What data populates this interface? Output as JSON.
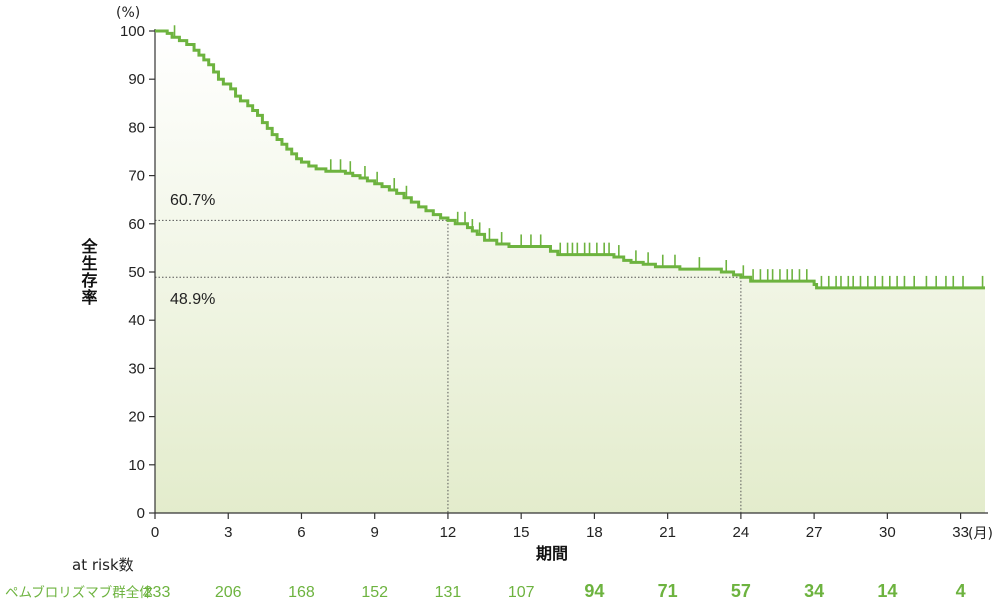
{
  "chart_data": {
    "type": "line",
    "subtype": "kaplan-meier",
    "ylabel": "全生存率",
    "yunit": "(%)",
    "xlabel": "期間",
    "xunit": "(月)",
    "xlim": [
      0,
      34
    ],
    "ylim": [
      0,
      100
    ],
    "xticks": [
      0,
      3,
      6,
      9,
      12,
      15,
      18,
      21,
      24,
      27,
      30,
      33
    ],
    "yticks": [
      0,
      10,
      20,
      30,
      40,
      50,
      60,
      70,
      80,
      90,
      100
    ],
    "grid": false,
    "colors": {
      "curve": "#6db33f",
      "fill_top": "#ffffff",
      "fill_bottom": "#e3eccc"
    },
    "series": [
      {
        "name": "ペムブロリズマブ群全体",
        "color": "#6db33f",
        "steps": [
          [
            0,
            100
          ],
          [
            0.5,
            99.5
          ],
          [
            0.7,
            98.7
          ],
          [
            1.0,
            98.0
          ],
          [
            1.3,
            97.2
          ],
          [
            1.6,
            96.0
          ],
          [
            1.8,
            95.0
          ],
          [
            2.0,
            94.0
          ],
          [
            2.2,
            93.0
          ],
          [
            2.4,
            91.5
          ],
          [
            2.6,
            90.0
          ],
          [
            2.8,
            89.0
          ],
          [
            3.1,
            88.0
          ],
          [
            3.3,
            86.5
          ],
          [
            3.5,
            85.5
          ],
          [
            3.8,
            84.5
          ],
          [
            4.0,
            83.5
          ],
          [
            4.2,
            82.5
          ],
          [
            4.4,
            81.0
          ],
          [
            4.6,
            79.8
          ],
          [
            4.8,
            78.5
          ],
          [
            5.0,
            77.5
          ],
          [
            5.2,
            76.5
          ],
          [
            5.4,
            75.5
          ],
          [
            5.6,
            74.5
          ],
          [
            5.8,
            73.5
          ],
          [
            6.0,
            72.8
          ],
          [
            6.3,
            72.0
          ],
          [
            6.6,
            71.4
          ],
          [
            7.0,
            70.9
          ],
          [
            7.8,
            70.5
          ],
          [
            8.1,
            70.0
          ],
          [
            8.4,
            69.5
          ],
          [
            8.7,
            68.9
          ],
          [
            9.0,
            68.3
          ],
          [
            9.3,
            67.7
          ],
          [
            9.6,
            67.0
          ],
          [
            9.9,
            66.3
          ],
          [
            10.2,
            65.4
          ],
          [
            10.5,
            64.5
          ],
          [
            10.8,
            63.5
          ],
          [
            11.1,
            62.7
          ],
          [
            11.4,
            61.9
          ],
          [
            11.7,
            61.2
          ],
          [
            12.0,
            60.7
          ],
          [
            12.3,
            60.0
          ],
          [
            12.8,
            59.2
          ],
          [
            13.0,
            58.5
          ],
          [
            13.2,
            57.8
          ],
          [
            13.5,
            56.6
          ],
          [
            14.0,
            55.8
          ],
          [
            14.5,
            55.3
          ],
          [
            16.2,
            54.3
          ],
          [
            16.5,
            53.6
          ],
          [
            18.8,
            53.1
          ],
          [
            19.2,
            52.4
          ],
          [
            19.5,
            52.0
          ],
          [
            20.0,
            51.6
          ],
          [
            20.5,
            51.1
          ],
          [
            21.5,
            50.6
          ],
          [
            23.2,
            50.0
          ],
          [
            23.7,
            49.4
          ],
          [
            24.0,
            48.9
          ],
          [
            24.4,
            48.1
          ],
          [
            27.0,
            47.4
          ],
          [
            27.1,
            46.7
          ],
          [
            34.0,
            46.7
          ]
        ],
        "censor": [
          0.8,
          7.2,
          7.6,
          8.0,
          8.6,
          9.1,
          9.8,
          10.3,
          12.4,
          12.7,
          13.0,
          13.3,
          13.7,
          14.2,
          15.0,
          15.4,
          15.8,
          16.6,
          16.9,
          17.1,
          17.3,
          17.6,
          17.8,
          18.1,
          18.4,
          18.6,
          19.0,
          19.7,
          20.2,
          20.8,
          21.3,
          22.3,
          23.4,
          24.1,
          24.5,
          24.8,
          25.1,
          25.3,
          25.6,
          25.9,
          26.1,
          26.4,
          26.7,
          27.3,
          27.6,
          27.9,
          28.1,
          28.4,
          28.6,
          28.9,
          29.2,
          29.5,
          29.8,
          30.1,
          30.4,
          30.7,
          31.1,
          31.6,
          32.0,
          32.4,
          32.7,
          33.1,
          33.9
        ]
      }
    ],
    "annotations": [
      {
        "x": 12,
        "y": 60.7,
        "label": "60.7%"
      },
      {
        "x": 24,
        "y": 48.9,
        "label": "48.9%"
      }
    ],
    "at_risk": {
      "title": "at risk数",
      "group": "ペムブロリズマブ群全体",
      "counts": [
        "233",
        "206",
        "168",
        "152",
        "131",
        "107",
        "94",
        "71",
        "57",
        "34",
        "14",
        "4"
      ]
    }
  }
}
